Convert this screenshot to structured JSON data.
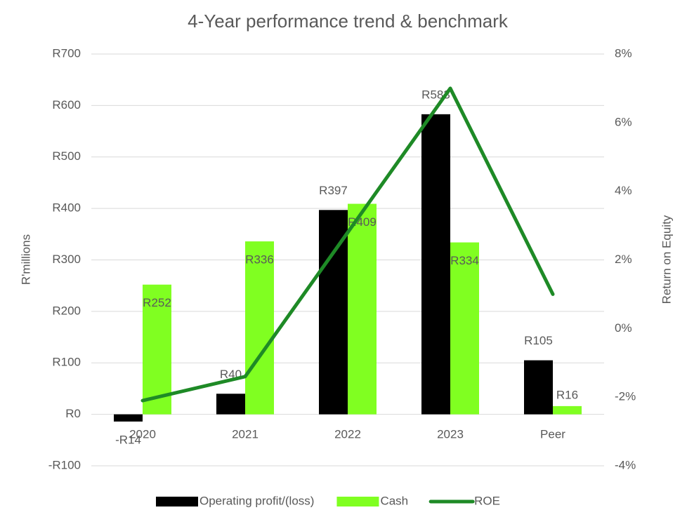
{
  "chart_data": {
    "type": "bar",
    "title": "4-Year performance trend & benchmark",
    "categories": [
      "2020",
      "2021",
      "2022",
      "2023",
      "Peer"
    ],
    "y_label": "R'millions",
    "y2_label": "Return on Equity",
    "series": [
      {
        "name": "Operating profit/(loss)",
        "color": "#000000",
        "type": "bar",
        "values": [
          -14,
          40,
          397,
          583,
          105
        ],
        "value_labels": [
          "-R14",
          "R40",
          "R397",
          "R583",
          "R105"
        ]
      },
      {
        "name": "Cash",
        "color": "#80ff21",
        "type": "bar",
        "values": [
          252,
          336,
          409,
          334,
          16
        ],
        "value_labels": [
          "R252",
          "R336",
          "R409",
          "R334",
          "R16"
        ]
      },
      {
        "name": "ROE",
        "color": "#1e8a26",
        "type": "line",
        "axis": "y2",
        "values": [
          -2.1,
          -1.4,
          2.8,
          7.0,
          1.0
        ]
      }
    ],
    "ylim": [
      -100,
      700
    ],
    "yticks": [
      {
        "value": -100,
        "label": "-R100"
      },
      {
        "value": 0,
        "label": "R0"
      },
      {
        "value": 100,
        "label": "R100"
      },
      {
        "value": 200,
        "label": "R200"
      },
      {
        "value": 300,
        "label": "R300"
      },
      {
        "value": 400,
        "label": "R400"
      },
      {
        "value": 500,
        "label": "R500"
      },
      {
        "value": 600,
        "label": "R600"
      },
      {
        "value": 700,
        "label": "R700"
      }
    ],
    "y2lim": [
      -4,
      8
    ],
    "y2ticks": [
      {
        "value": -4,
        "label": "-4%"
      },
      {
        "value": -2,
        "label": "-2%"
      },
      {
        "value": 0,
        "label": "0%"
      },
      {
        "value": 2,
        "label": "2%"
      },
      {
        "value": 4,
        "label": "4%"
      },
      {
        "value": 6,
        "label": "6%"
      },
      {
        "value": 8,
        "label": "8%"
      }
    ],
    "grid": true,
    "legend": "bottom"
  }
}
